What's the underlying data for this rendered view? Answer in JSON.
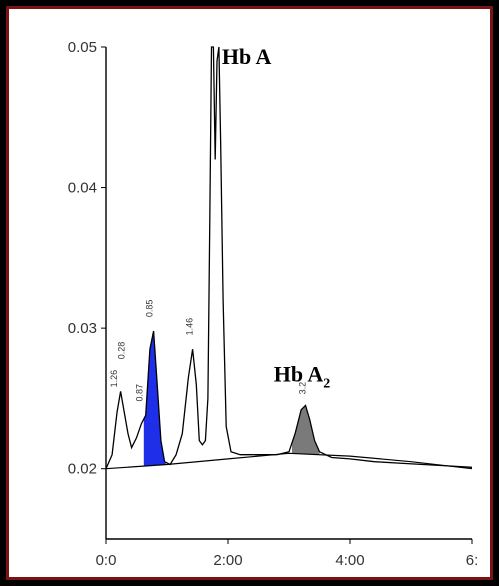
{
  "chart_data": {
    "type": "line",
    "title": "",
    "xlabel": "",
    "ylabel": "",
    "xlim": [
      0,
      6
    ],
    "ylim": [
      0.015,
      0.05
    ],
    "grid": false,
    "x_ticks": [
      {
        "value": 0,
        "label": "0:0"
      },
      {
        "value": 2,
        "label": "2:00"
      },
      {
        "value": 4,
        "label": "4:00"
      },
      {
        "value": 6,
        "label": "6:"
      }
    ],
    "y_ticks": [
      {
        "value": 0.05,
        "label": "0.05"
      },
      {
        "value": 0.04,
        "label": "0.04"
      },
      {
        "value": 0.03,
        "label": "0.03"
      },
      {
        "value": 0.02,
        "label": "0.02"
      }
    ],
    "series": [
      {
        "color": "#000000",
        "x": [
          0.0,
          0.1,
          0.18,
          0.24,
          0.3,
          0.36,
          0.42,
          0.5,
          0.58,
          0.65,
          0.72,
          0.78,
          0.84,
          0.9,
          0.96,
          1.05,
          1.15,
          1.25,
          1.35,
          1.42,
          1.48,
          1.53,
          1.58,
          1.63,
          1.67,
          1.7,
          1.73,
          1.76,
          1.79,
          1.82,
          1.85,
          1.88,
          1.92,
          1.97,
          2.05,
          2.2,
          2.5,
          2.8,
          3.0,
          3.1,
          3.2,
          3.27,
          3.34,
          3.42,
          3.5,
          3.7,
          4.0,
          4.4,
          4.8,
          5.2,
          5.6,
          6.0
        ],
        "y": [
          0.02,
          0.021,
          0.024,
          0.0255,
          0.024,
          0.0225,
          0.0215,
          0.0222,
          0.0232,
          0.0238,
          0.0285,
          0.0298,
          0.026,
          0.022,
          0.0205,
          0.0203,
          0.021,
          0.0225,
          0.0265,
          0.0285,
          0.026,
          0.022,
          0.0217,
          0.022,
          0.025,
          0.037,
          0.05,
          0.05,
          0.042,
          0.049,
          0.05,
          0.043,
          0.032,
          0.023,
          0.0212,
          0.021,
          0.021,
          0.021,
          0.0212,
          0.0225,
          0.0242,
          0.0245,
          0.0235,
          0.022,
          0.0212,
          0.0208,
          0.0207,
          0.0205,
          0.0204,
          0.0203,
          0.0202,
          0.0201
        ]
      }
    ],
    "baseline": {
      "color": "#000000",
      "x": [
        0.0,
        1.0,
        2.0,
        3.0,
        4.0,
        5.0,
        6.0
      ],
      "y": [
        0.02,
        0.0203,
        0.0207,
        0.0211,
        0.0209,
        0.0205,
        0.02
      ]
    },
    "shaded_peaks": [
      {
        "color": "#1f2ee8",
        "x_start": 0.62,
        "x_end": 0.98
      },
      {
        "color": "#7a7a7a",
        "x_start": 3.05,
        "x_end": 3.5
      }
    ],
    "peak_labels": [
      {
        "x": 0.18,
        "y": 0.0255,
        "text": "1.26"
      },
      {
        "x": 0.3,
        "y": 0.0275,
        "text": "0.28"
      },
      {
        "x": 0.6,
        "y": 0.0245,
        "text": "0.87"
      },
      {
        "x": 0.76,
        "y": 0.0305,
        "text": "0.85"
      },
      {
        "x": 1.42,
        "y": 0.0292,
        "text": "1.46"
      },
      {
        "x": 3.27,
        "y": 0.025,
        "text": "3.2"
      }
    ],
    "annotations": [
      {
        "x": 1.9,
        "y": 0.0488,
        "text": "Hb A",
        "subscript": ""
      },
      {
        "x": 2.75,
        "y": 0.0262,
        "text": "Hb A",
        "subscript": "2"
      }
    ],
    "colors": {
      "frame": "#7a1414",
      "background": "#ffffff",
      "line": "#000000",
      "axis": "#000000",
      "tick_text": "#333333"
    }
  }
}
